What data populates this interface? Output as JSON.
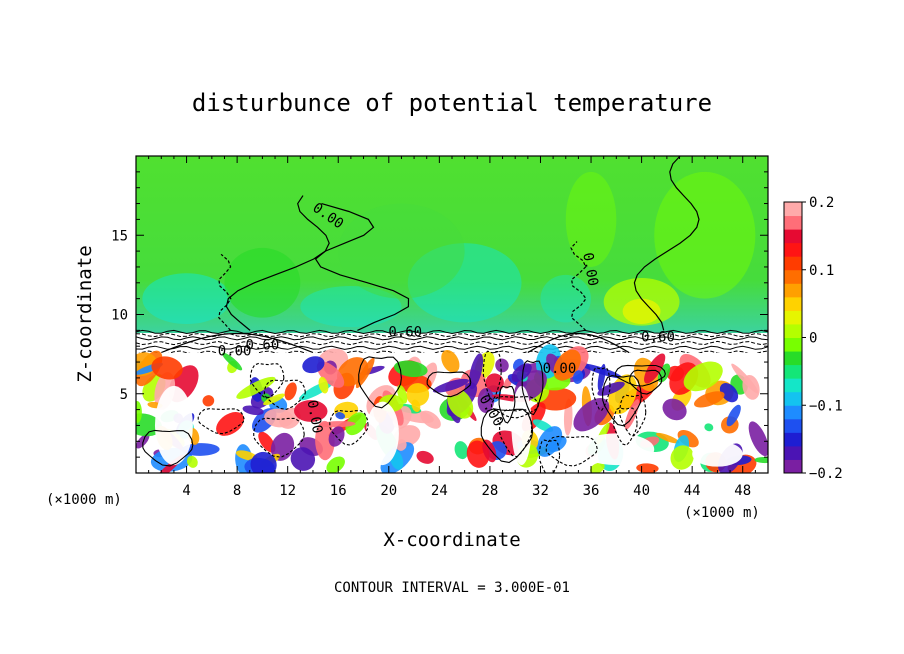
{
  "chart_data": {
    "type": "heatmap",
    "title": "disturbunce of potential temperature",
    "xlabel": "X-coordinate",
    "ylabel": "Z-coordinate",
    "x_unit_left": "(×1000 m)",
    "x_unit_right": "(×1000 m)",
    "xlim": [
      0,
      50
    ],
    "ylim": [
      0,
      20
    ],
    "xticks": [
      4,
      8,
      12,
      16,
      20,
      24,
      28,
      32,
      36,
      40,
      44,
      48
    ],
    "xtick_labels": [
      "4",
      "8",
      "12",
      "16",
      "20",
      "24",
      "28",
      "32",
      "36",
      "40",
      "44",
      "48"
    ],
    "yticks": [
      5,
      10,
      15
    ],
    "ytick_labels": [
      "5",
      "10",
      "15"
    ],
    "colorbar": {
      "range": [
        -0.2,
        0.2
      ],
      "ticks": [
        0.2,
        0.1,
        0,
        -0.1,
        -0.2
      ],
      "tick_labels": [
        "0.2",
        "0.1",
        "0",
        "−0.1",
        "−0.2"
      ],
      "colors": [
        "#7a1fa2",
        "#4b14b4",
        "#1e1ed2",
        "#1e50f0",
        "#1e8cff",
        "#14c3f0",
        "#14e6c8",
        "#14e678",
        "#28dc28",
        "#78ff00",
        "#b4ff00",
        "#e6f500",
        "#ffd200",
        "#ffa000",
        "#ff6e00",
        "#ff3c00",
        "#ff1414",
        "#e60a32",
        "#ff6e78",
        "#ffaaaa"
      ]
    },
    "contour_interval_text": "CONTOUR INTERVAL = 3.000E-01",
    "contour_labels": [
      {
        "text": "0.00",
        "x": 15.0,
        "z": 16.0,
        "rot": 35
      },
      {
        "text": "0.00",
        "x": 35.6,
        "z": 12.8,
        "rot": 80
      },
      {
        "text": "0.60",
        "x": 21.3,
        "z": 8.6,
        "rot": 0
      },
      {
        "text": "0.60",
        "x": 41.3,
        "z": 8.3,
        "rot": 0
      },
      {
        "text": "0.60",
        "x": 10.0,
        "z": 7.8,
        "rot": 0
      },
      {
        "text": "0.00",
        "x": 7.8,
        "z": 7.4,
        "rot": 0
      },
      {
        "text": "0.00",
        "x": 33.5,
        "z": 6.3,
        "rot": 0
      },
      {
        "text": "0.00",
        "x": 13.8,
        "z": 3.5,
        "rot": 80
      },
      {
        "text": "0.00",
        "x": 27.8,
        "z": 3.8,
        "rot": 60
      }
    ],
    "regions": {
      "upper_layer": {
        "z_range": [
          9.0,
          20.0
        ],
        "dominant_value": 0.0
      },
      "inversion_band": {
        "z_range": [
          7.5,
          9.0
        ],
        "note": "white, strong stable layer"
      },
      "mixed_layer": {
        "z_range": [
          0.0,
          7.5
        ],
        "value_range": [
          -0.2,
          0.2
        ]
      }
    }
  }
}
